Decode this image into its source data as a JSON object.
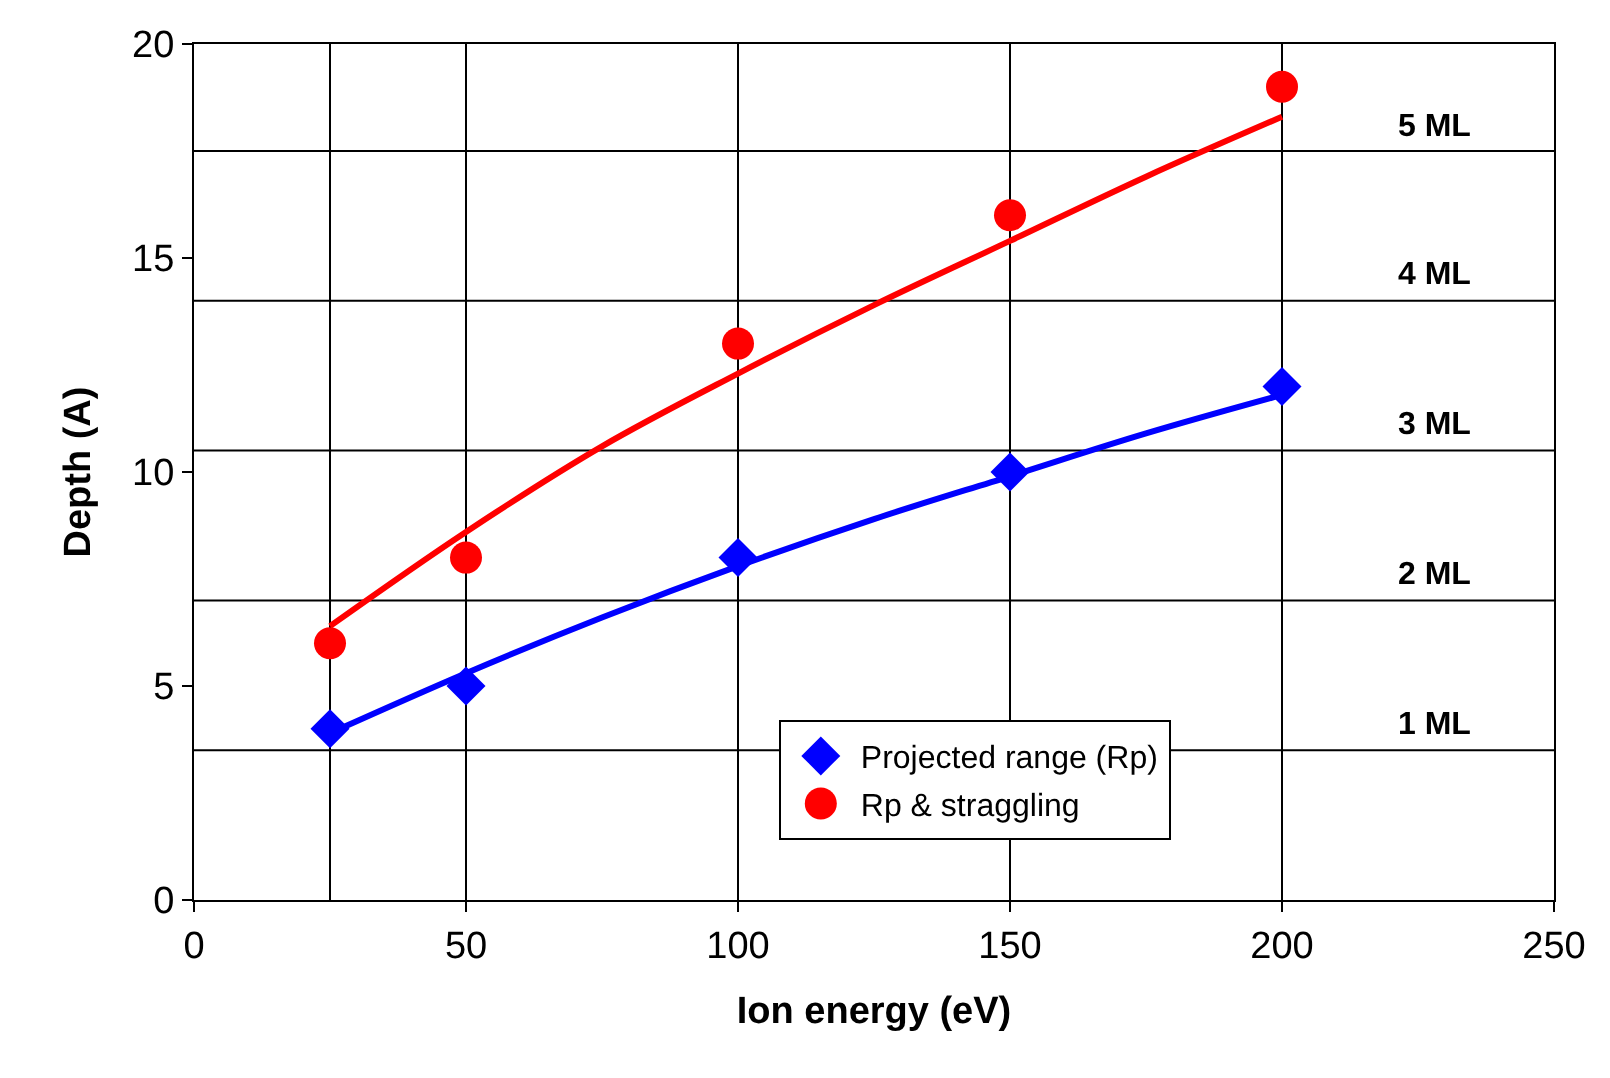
{
  "chart_data": {
    "type": "scatter",
    "xlabel": "Ion energy (eV)",
    "ylabel": "Depth (A)",
    "xlim": [
      0,
      250
    ],
    "xticks": [
      0,
      50,
      100,
      150,
      200,
      250
    ],
    "ylim": [
      0,
      20
    ],
    "yticks": [
      0,
      5,
      10,
      15,
      20
    ],
    "grid": false,
    "legend": "bottom right",
    "series": [
      {
        "name": "Projected range (Rp)",
        "color": "#0000ff",
        "marker": "diamond",
        "x": [
          25,
          50,
          100,
          150,
          200
        ],
        "values": [
          4,
          5,
          8,
          10,
          12
        ]
      },
      {
        "name": "Rp & straggling",
        "color": "#ff0000",
        "marker": "circle",
        "x": [
          25,
          50,
          100,
          150,
          200
        ],
        "values": [
          6,
          8,
          13,
          16,
          19
        ]
      },
      {
        "type": "line",
        "color": "#0000ff",
        "x": [
          25,
          50,
          75,
          100,
          125,
          150,
          175,
          200
        ],
        "values": [
          3.9,
          5.3,
          6.6,
          7.8,
          8.9,
          9.9,
          10.9,
          11.8
        ]
      },
      {
        "type": "line",
        "color": "#ff0000",
        "x": [
          25,
          50,
          75,
          100,
          125,
          150,
          175,
          200
        ],
        "values": [
          6.4,
          8.6,
          10.6,
          12.3,
          13.9,
          15.4,
          16.9,
          18.3
        ]
      }
    ],
    "ref_lines": [
      {
        "axis": "x",
        "value": 25,
        "label": null
      },
      {
        "axis": "x",
        "value": 50,
        "label": null
      },
      {
        "axis": "x",
        "value": 100,
        "label": null
      },
      {
        "axis": "x",
        "value": 150,
        "label": null
      },
      {
        "axis": "x",
        "value": 200,
        "label": null
      },
      {
        "axis": "y",
        "value": 3.5,
        "label": "1 ML"
      },
      {
        "axis": "y",
        "value": 7,
        "label": "2 ML"
      },
      {
        "axis": "y",
        "value": 10.5,
        "label": "3 ML"
      },
      {
        "axis": "y",
        "value": 14,
        "label": "4 ML"
      },
      {
        "axis": "y",
        "value": 17.5,
        "label": "5 ML"
      }
    ]
  }
}
